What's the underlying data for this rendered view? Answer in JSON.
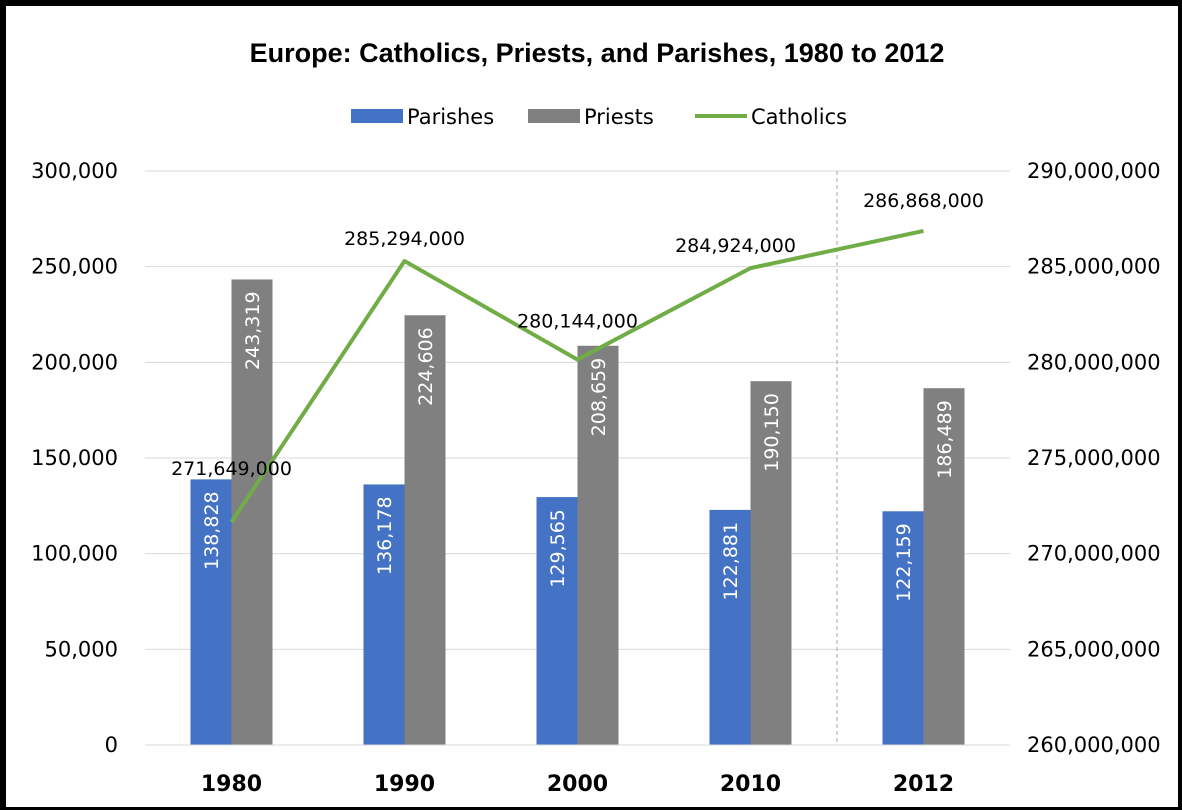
{
  "chart_data": {
    "type": "bar",
    "title": "Europe: Catholics, Priests, and Parishes, 1980 to 2012",
    "categories": [
      "1980",
      "1990",
      "2000",
      "2010",
      "2012"
    ],
    "series": [
      {
        "name": "Parishes",
        "type": "bar",
        "axis": "left",
        "color": "#4472c4",
        "values": [
          138828,
          136178,
          129565,
          122881,
          122159
        ],
        "labels": [
          "138,828",
          "136,178",
          "129,565",
          "122,881",
          "122,159"
        ]
      },
      {
        "name": "Priests",
        "type": "bar",
        "axis": "left",
        "color": "#808080",
        "values": [
          243319,
          224606,
          208659,
          190150,
          186489
        ],
        "labels": [
          "243,319",
          "224,606",
          "208,659",
          "190,150",
          "186,489"
        ]
      },
      {
        "name": "Catholics",
        "type": "line",
        "axis": "right",
        "color": "#70ad47",
        "values": [
          271649000,
          285294000,
          280144000,
          284924000,
          286868000
        ],
        "labels": [
          "271,649,000",
          "285,294,000",
          "280,144,000",
          "284,924,000",
          "286,868,000"
        ]
      }
    ],
    "y_left": {
      "min": 0,
      "max": 300000,
      "step": 50000,
      "ticks": [
        "0",
        "50,000",
        "100,000",
        "150,000",
        "200,000",
        "250,000",
        "300,000"
      ]
    },
    "y_right": {
      "min": 260000000,
      "max": 290000000,
      "step": 5000000,
      "ticks": [
        "260,000,000",
        "265,000,000",
        "270,000,000",
        "275,000,000",
        "280,000,000",
        "285,000,000",
        "290,000,000"
      ]
    },
    "grid": true,
    "legend_position": "top",
    "separator_before_category": "2012"
  }
}
